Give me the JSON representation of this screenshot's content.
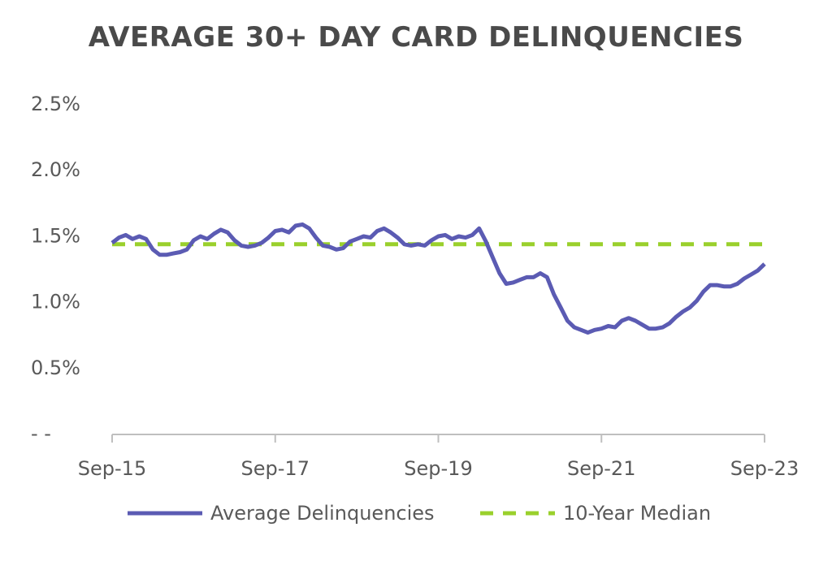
{
  "chart_data": {
    "type": "line",
    "title": "AVERAGE 30+ DAY CARD DELINQUENCIES",
    "xlabel": "",
    "ylabel": "",
    "x_range": [
      "2015-09",
      "2023-09"
    ],
    "x_tick_labels": [
      "Sep-15",
      "Sep-17",
      "Sep-19",
      "Sep-21",
      "Sep-23"
    ],
    "y_tick_labels": [
      "- -",
      "0.5%",
      "1.0%",
      "1.5%",
      "2.0%",
      "2.5%"
    ],
    "ylim": [
      0,
      2.5
    ],
    "grid": false,
    "legend_position": "bottom",
    "series": [
      {
        "name": "Average Delinquencies",
        "style": "solid",
        "color": "#5b5bb3",
        "points": [
          [
            "2015-09",
            1.44
          ],
          [
            "2015-10",
            1.48
          ],
          [
            "2015-11",
            1.5
          ],
          [
            "2015-12",
            1.47
          ],
          [
            "2016-01",
            1.49
          ],
          [
            "2016-02",
            1.47
          ],
          [
            "2016-03",
            1.39
          ],
          [
            "2016-04",
            1.35
          ],
          [
            "2016-05",
            1.35
          ],
          [
            "2016-06",
            1.36
          ],
          [
            "2016-07",
            1.37
          ],
          [
            "2016-08",
            1.39
          ],
          [
            "2016-09",
            1.46
          ],
          [
            "2016-10",
            1.49
          ],
          [
            "2016-11",
            1.47
          ],
          [
            "2016-12",
            1.51
          ],
          [
            "2017-01",
            1.54
          ],
          [
            "2017-02",
            1.52
          ],
          [
            "2017-03",
            1.46
          ],
          [
            "2017-04",
            1.42
          ],
          [
            "2017-05",
            1.41
          ],
          [
            "2017-06",
            1.42
          ],
          [
            "2017-07",
            1.44
          ],
          [
            "2017-08",
            1.48
          ],
          [
            "2017-09",
            1.53
          ],
          [
            "2017-10",
            1.54
          ],
          [
            "2017-11",
            1.52
          ],
          [
            "2017-12",
            1.57
          ],
          [
            "2018-01",
            1.58
          ],
          [
            "2018-02",
            1.55
          ],
          [
            "2018-03",
            1.48
          ],
          [
            "2018-04",
            1.42
          ],
          [
            "2018-05",
            1.41
          ],
          [
            "2018-06",
            1.39
          ],
          [
            "2018-07",
            1.4
          ],
          [
            "2018-08",
            1.45
          ],
          [
            "2018-09",
            1.47
          ],
          [
            "2018-10",
            1.49
          ],
          [
            "2018-11",
            1.48
          ],
          [
            "2018-12",
            1.53
          ],
          [
            "2019-01",
            1.55
          ],
          [
            "2019-02",
            1.52
          ],
          [
            "2019-03",
            1.48
          ],
          [
            "2019-04",
            1.43
          ],
          [
            "2019-05",
            1.42
          ],
          [
            "2019-06",
            1.43
          ],
          [
            "2019-07",
            1.42
          ],
          [
            "2019-08",
            1.46
          ],
          [
            "2019-09",
            1.49
          ],
          [
            "2019-10",
            1.5
          ],
          [
            "2019-11",
            1.47
          ],
          [
            "2019-12",
            1.49
          ],
          [
            "2020-01",
            1.48
          ],
          [
            "2020-02",
            1.5
          ],
          [
            "2020-03",
            1.55
          ],
          [
            "2020-04",
            1.45
          ],
          [
            "2020-05",
            1.33
          ],
          [
            "2020-06",
            1.21
          ],
          [
            "2020-07",
            1.13
          ],
          [
            "2020-08",
            1.14
          ],
          [
            "2020-09",
            1.16
          ],
          [
            "2020-10",
            1.18
          ],
          [
            "2020-11",
            1.18
          ],
          [
            "2020-12",
            1.21
          ],
          [
            "2021-01",
            1.18
          ],
          [
            "2021-02",
            1.05
          ],
          [
            "2021-03",
            0.95
          ],
          [
            "2021-04",
            0.85
          ],
          [
            "2021-05",
            0.8
          ],
          [
            "2021-06",
            0.78
          ],
          [
            "2021-07",
            0.76
          ],
          [
            "2021-08",
            0.78
          ],
          [
            "2021-09",
            0.79
          ],
          [
            "2021-10",
            0.81
          ],
          [
            "2021-11",
            0.8
          ],
          [
            "2021-12",
            0.85
          ],
          [
            "2022-01",
            0.87
          ],
          [
            "2022-02",
            0.85
          ],
          [
            "2022-03",
            0.82
          ],
          [
            "2022-04",
            0.79
          ],
          [
            "2022-05",
            0.79
          ],
          [
            "2022-06",
            0.8
          ],
          [
            "2022-07",
            0.83
          ],
          [
            "2022-08",
            0.88
          ],
          [
            "2022-09",
            0.92
          ],
          [
            "2022-10",
            0.95
          ],
          [
            "2022-11",
            1.0
          ],
          [
            "2022-12",
            1.07
          ],
          [
            "2023-01",
            1.12
          ],
          [
            "2023-02",
            1.12
          ],
          [
            "2023-03",
            1.11
          ],
          [
            "2023-04",
            1.11
          ],
          [
            "2023-05",
            1.13
          ],
          [
            "2023-06",
            1.17
          ],
          [
            "2023-07",
            1.2
          ],
          [
            "2023-08",
            1.23
          ],
          [
            "2023-09",
            1.28
          ]
        ]
      },
      {
        "name": "10-Year Median",
        "style": "dashed",
        "color": "#9ad02c",
        "points": [
          [
            "2015-09",
            1.43
          ],
          [
            "2023-09",
            1.43
          ]
        ]
      }
    ]
  }
}
